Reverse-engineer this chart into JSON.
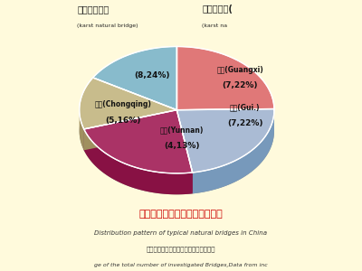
{
  "title_cn": "中国典型天生桥分布格局示意图",
  "title_en": "Distribution pattern of typical natural bridges in China",
  "subtitle_cn": "占该类总数的百分比，图中数据来源于载",
  "subtitle_en": "ge of the total number of investigated Bridges,Data from inc",
  "slices": [
    {
      "label_cn": "",
      "label_en": "",
      "value": 24,
      "pct_label": "(8,24%)",
      "color": "#E07878",
      "shadow_color": "#B05050"
    },
    {
      "label_cn": "广西(Guangxi)",
      "label_en": "",
      "value": 22,
      "pct_label": "(7,22%)",
      "color": "#AABBD4",
      "shadow_color": "#7799BB"
    },
    {
      "label_cn": "贵州(Gui.)",
      "label_en": "",
      "value": 22,
      "pct_label": "(7,22%)",
      "color": "#AA3366",
      "shadow_color": "#881144"
    },
    {
      "label_cn": "云南(Yunnan)",
      "label_en": "",
      "value": 13,
      "pct_label": "(4,13%)",
      "color": "#C8BC8C",
      "shadow_color": "#A09060"
    },
    {
      "label_cn": "重庆(Chongqing)",
      "label_en": "",
      "value": 16,
      "pct_label": "(5,16%)",
      "color": "#88BBCC",
      "shadow_color": "#5599AA"
    }
  ],
  "bg_color": "#FFFADC",
  "left_header_cn": "非岩溶天生桥",
  "left_header_en": "(karst natural bridge)",
  "right_header_cn": "岩溶天生桥(",
  "right_header_en": "(karst na"
}
